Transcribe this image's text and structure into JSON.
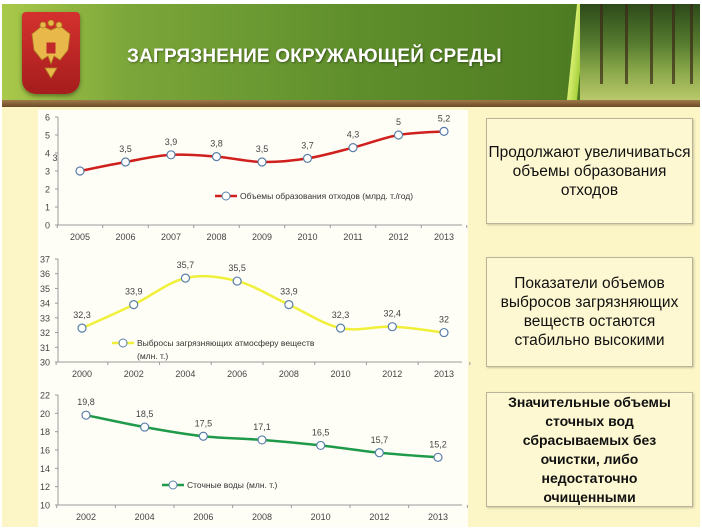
{
  "header": {
    "title": "ЗАГРЯЗНЕНИЕ ОКРУЖАЮЩЕЙ СРЕДЫ"
  },
  "notes": [
    "Продолжают увеличиваться объемы образования отходов",
    "Показатели объемов выбросов загрязняющих веществ остаются стабильно высокими",
    "Значительные объемы сточных вод сбрасываемых без очистки, либо недостаточно очищенными"
  ],
  "chart_data": [
    {
      "type": "line",
      "categories": [
        "2005",
        "2006",
        "2007",
        "2008",
        "2009",
        "2010",
        "2011",
        "2012",
        "2013"
      ],
      "series": [
        {
          "name": "Объемы образования отходов (млрд. т./год)",
          "values": [
            3,
            3.5,
            3.9,
            3.8,
            3.5,
            3.7,
            4.3,
            5,
            5.2
          ],
          "labels": [
            "3",
            "3,5",
            "3,9",
            "3,8",
            "3,5",
            "3,7",
            "4,3",
            "5",
            "5,2"
          ],
          "color": "#d0201e"
        }
      ],
      "ylim": [
        0,
        6
      ],
      "yticks": [
        "0",
        "1",
        "2",
        "3",
        "4",
        "5",
        "6"
      ],
      "legend": "bottom-right"
    },
    {
      "type": "line",
      "categories": [
        "2000",
        "2002",
        "2004",
        "2006",
        "2008",
        "2010",
        "2012",
        "2013"
      ],
      "series": [
        {
          "name": "Выбросы загрязняющих атмосферу веществ",
          "name2": "(млн. т.)",
          "values": [
            32.3,
            33.9,
            35.7,
            35.5,
            33.9,
            32.3,
            32.4,
            32
          ],
          "labels": [
            "32,3",
            "33,9",
            "35,7",
            "35,5",
            "33,9",
            "32,3",
            "32,4",
            "32"
          ],
          "color": "#f0f03a"
        }
      ],
      "ylim": [
        30,
        37
      ],
      "yticks": [
        "30",
        "31",
        "32",
        "33",
        "34",
        "35",
        "36",
        "37"
      ],
      "legend": "bottom-left"
    },
    {
      "type": "line",
      "categories": [
        "2002",
        "2004",
        "2006",
        "2008",
        "2010",
        "2012",
        "2013"
      ],
      "series": [
        {
          "name": "Сточные воды (млн. т.)",
          "values": [
            19.8,
            18.5,
            17.5,
            17.1,
            16.5,
            15.7,
            15.2
          ],
          "labels": [
            "19,8",
            "18,5",
            "17,5",
            "17,1",
            "16,5",
            "15,7",
            "15,2"
          ],
          "color": "#1f9a4a"
        }
      ],
      "ylim": [
        10,
        22
      ],
      "yticks": [
        "10",
        "12",
        "14",
        "16",
        "18",
        "20",
        "22"
      ],
      "legend": "bottom-center"
    }
  ]
}
